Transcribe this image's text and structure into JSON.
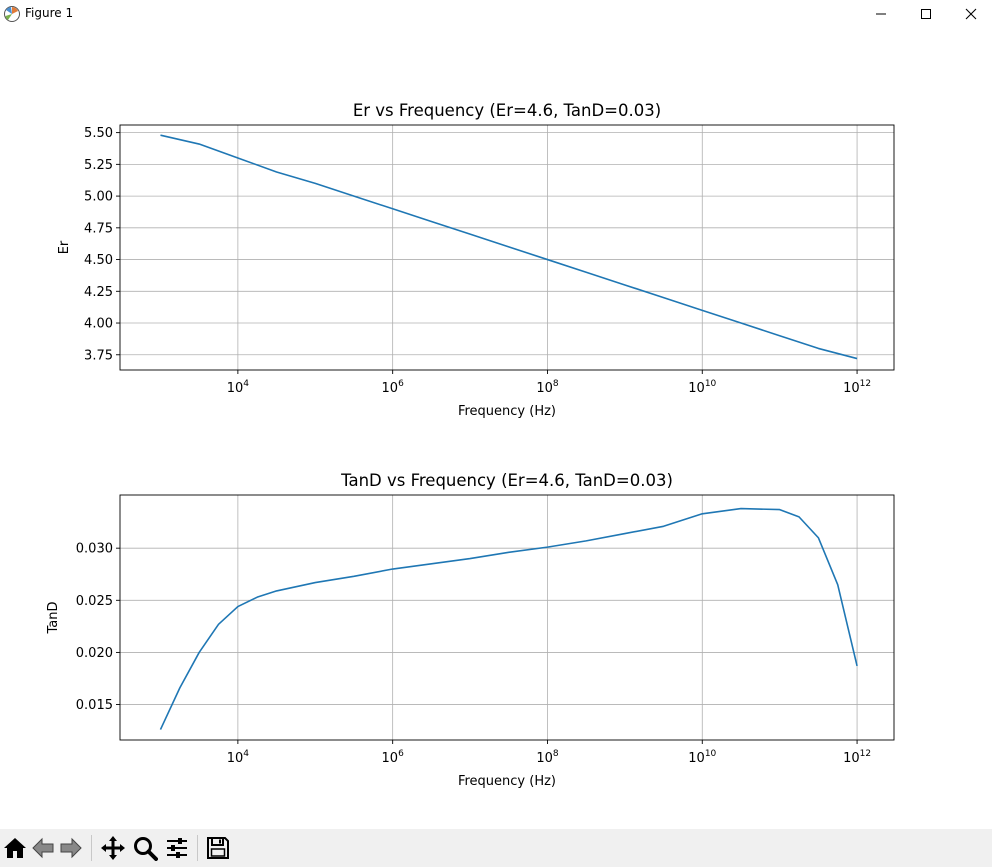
{
  "window": {
    "title": "Figure 1",
    "icons": [
      "app-icon",
      "minimize-icon",
      "maximize-icon",
      "close-icon"
    ]
  },
  "toolbar": {
    "buttons": [
      "home-icon",
      "back-arrow-icon",
      "forward-arrow-icon",
      "pan-icon",
      "zoom-icon",
      "configure-subplots-icon",
      "save-icon"
    ]
  },
  "chart_data": [
    {
      "type": "line",
      "title": "Er vs Frequency (Er=4.6, TanD=0.03)",
      "xlabel": "Frequency (Hz)",
      "ylabel": "Er",
      "xscale": "log",
      "xlim": [
        300,
        3000000000000
      ],
      "ylim": [
        3.63,
        5.56
      ],
      "xticks": [
        10000,
        1000000,
        100000000,
        10000000000,
        1000000000000
      ],
      "xtick_labels": [
        [
          "10",
          "4"
        ],
        [
          "10",
          "6"
        ],
        [
          "10",
          "8"
        ],
        [
          "10",
          "10"
        ],
        [
          "10",
          "12"
        ]
      ],
      "yticks": [
        "3.75",
        "4.00",
        "4.25",
        "4.50",
        "4.75",
        "5.00",
        "5.25",
        "5.50"
      ],
      "grid": true,
      "color": "#1f77b4",
      "series": [
        {
          "x": [
            1000,
            3162,
            10000,
            31623,
            100000,
            316228,
            1000000,
            3162278,
            10000000,
            31622777,
            100000000,
            316227766,
            1000000000,
            3162277660,
            10000000000,
            31622776602,
            100000000000,
            316227766017,
            1000000000000
          ],
          "values": [
            5.48,
            5.41,
            5.3,
            5.19,
            5.1,
            5.0,
            4.9,
            4.8,
            4.7,
            4.6,
            4.5,
            4.4,
            4.3,
            4.2,
            4.1,
            4.0,
            3.9,
            3.8,
            3.72
          ]
        }
      ]
    },
    {
      "type": "line",
      "title": "TanD vs Frequency (Er=4.6, TanD=0.03)",
      "xlabel": "Frequency (Hz)",
      "ylabel": "TanD",
      "xscale": "log",
      "xlim": [
        300,
        3000000000000
      ],
      "ylim": [
        0.0116,
        0.0351
      ],
      "xticks": [
        10000,
        1000000,
        100000000,
        10000000000,
        1000000000000
      ],
      "xtick_labels": [
        [
          "10",
          "4"
        ],
        [
          "10",
          "6"
        ],
        [
          "10",
          "8"
        ],
        [
          "10",
          "10"
        ],
        [
          "10",
          "12"
        ]
      ],
      "yticks": [
        "0.015",
        "0.020",
        "0.025",
        "0.030"
      ],
      "grid": true,
      "color": "#1f77b4",
      "series": [
        {
          "x": [
            1000,
            1778,
            3162,
            5623,
            10000,
            17783,
            31623,
            100000,
            316228,
            1000000,
            3162278,
            10000000,
            31622777,
            100000000,
            316227766,
            1000000000,
            3162277660,
            10000000000,
            31622776602,
            100000000000,
            177827941004,
            316227766017,
            562341325190,
            1000000000000
          ],
          "values": [
            0.0126,
            0.0166,
            0.02,
            0.0227,
            0.0244,
            0.0253,
            0.0259,
            0.0267,
            0.0273,
            0.028,
            0.0285,
            0.029,
            0.0296,
            0.0301,
            0.0307,
            0.0314,
            0.0321,
            0.0333,
            0.0338,
            0.0337,
            0.033,
            0.031,
            0.0265,
            0.0187
          ]
        }
      ]
    }
  ]
}
